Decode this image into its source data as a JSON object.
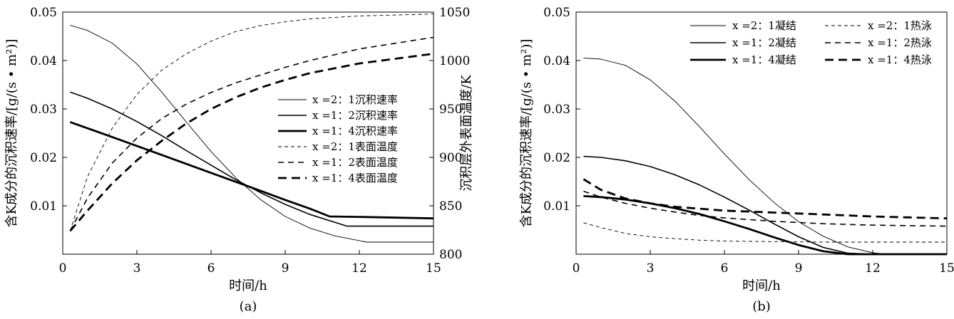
{
  "chart_data": [
    {
      "type": "line",
      "panel_label": "(a)",
      "xlabel": "时间/h",
      "ylabel": "含K成分的沉积速率/[g/(s • m²)]",
      "y2label": "沉积层外表面温度/K",
      "xlim": [
        0,
        15
      ],
      "ylim": [
        0,
        0.05
      ],
      "y2lim": [
        800,
        1050
      ],
      "x_ticks": [
        "0",
        "3",
        "6",
        "9",
        "12",
        "15"
      ],
      "y_ticks": [
        "0.01",
        "0.02",
        "0.03",
        "0.04",
        "0.05"
      ],
      "y2_ticks": [
        "800",
        "850",
        "900",
        "950",
        "1000",
        "1050"
      ],
      "grid": false,
      "legend_position": "center-right",
      "series": [
        {
          "name": "x =2：1沉积速率",
          "axis": "left",
          "style": "solid-thin",
          "x": [
            0.3,
            1,
            2,
            3,
            4,
            5,
            6,
            7,
            8,
            9,
            10,
            11,
            12.3,
            13,
            15
          ],
          "y": [
            0.0473,
            0.0462,
            0.0436,
            0.0393,
            0.0335,
            0.0273,
            0.0212,
            0.0158,
            0.0113,
            0.0078,
            0.0054,
            0.0038,
            0.0025,
            0.0025,
            0.0025
          ]
        },
        {
          "name": "x =1：2沉积速率",
          "axis": "left",
          "style": "solid-medium",
          "x": [
            0.3,
            1,
            2,
            3,
            4,
            5,
            6,
            7,
            8,
            9,
            10,
            11.5,
            13,
            15
          ],
          "y": [
            0.0335,
            0.0322,
            0.03,
            0.0274,
            0.0245,
            0.0214,
            0.0184,
            0.0154,
            0.0127,
            0.0103,
            0.0082,
            0.0058,
            0.0058,
            0.0058
          ]
        },
        {
          "name": "x =1：4沉积速率",
          "axis": "left",
          "style": "solid-thick",
          "x": [
            0.3,
            2,
            4,
            6,
            8,
            9,
            10,
            10.8,
            12,
            15
          ],
          "y": [
            0.0273,
            0.0242,
            0.0205,
            0.0168,
            0.0131,
            0.0112,
            0.0094,
            0.0078,
            0.0077,
            0.0074
          ]
        },
        {
          "name": "x =2：1表面温度",
          "axis": "right",
          "style": "dash-thin",
          "x": [
            0.3,
            1,
            2,
            3,
            4,
            5,
            6,
            7,
            8,
            9,
            10,
            12,
            15
          ],
          "y": [
            824,
            880,
            930,
            965,
            990,
            1007,
            1020,
            1030,
            1036,
            1040,
            1043,
            1046,
            1048
          ]
        },
        {
          "name": "x =1：2表面温度",
          "axis": "right",
          "style": "dash-medium",
          "x": [
            0.3,
            1,
            2,
            3,
            4,
            5,
            6,
            7,
            8,
            9,
            10,
            12,
            15
          ],
          "y": [
            824,
            858,
            894,
            920,
            940,
            955,
            967,
            977,
            985,
            993,
            1000,
            1012,
            1024
          ]
        },
        {
          "name": "x =1：4表面温度",
          "axis": "right",
          "style": "dash-thick",
          "x": [
            0.3,
            1,
            2,
            3,
            4,
            5,
            6,
            7,
            8,
            9,
            10,
            12,
            15
          ],
          "y": [
            824,
            845,
            873,
            897,
            917,
            935,
            950,
            962,
            972,
            980,
            987,
            997,
            1007
          ]
        }
      ]
    },
    {
      "type": "line",
      "panel_label": "(b)",
      "xlabel": "时间/h",
      "ylabel": "含K成分的沉积速率/[g/(s • m²)]",
      "xlim": [
        0,
        15
      ],
      "ylim": [
        0,
        0.05
      ],
      "x_ticks": [
        "0",
        "3",
        "6",
        "9",
        "12",
        "15"
      ],
      "y_ticks": [
        "0.01",
        "0.02",
        "0.03",
        "0.04",
        "0.05"
      ],
      "grid": false,
      "legend_position": "top",
      "series": [
        {
          "name": "x =2：1凝结",
          "style": "solid-thin",
          "x": [
            0.3,
            1,
            2,
            3,
            4,
            5,
            6,
            7,
            8,
            9,
            10,
            11,
            12,
            12.5,
            15
          ],
          "y": [
            0.0405,
            0.0403,
            0.039,
            0.036,
            0.0316,
            0.0263,
            0.0207,
            0.0154,
            0.0107,
            0.0067,
            0.0037,
            0.0015,
            0.0003,
            0.0,
            0.0
          ]
        },
        {
          "name": "x =1：2凝结",
          "style": "solid-medium",
          "x": [
            0.3,
            1,
            2,
            3,
            4,
            5,
            6,
            7,
            8,
            9,
            10,
            11,
            12,
            15
          ],
          "y": [
            0.0202,
            0.02,
            0.0193,
            0.0181,
            0.0164,
            0.0143,
            0.0118,
            0.0091,
            0.0063,
            0.0036,
            0.0014,
            0.0002,
            0.0,
            0.0
          ]
        },
        {
          "name": "x =1：4凝结",
          "style": "solid-thick",
          "x": [
            0.3,
            1,
            2,
            3,
            4,
            5,
            6,
            7,
            8,
            9,
            10,
            11,
            15
          ],
          "y": [
            0.012,
            0.0118,
            0.0113,
            0.0105,
            0.0095,
            0.0083,
            0.0068,
            0.0052,
            0.0035,
            0.0019,
            0.0006,
            0.0,
            0.0
          ]
        },
        {
          "name": "x =2：1热泳",
          "style": "dash-thin",
          "x": [
            0.3,
            1,
            2,
            3,
            4,
            5,
            6,
            8,
            10,
            12,
            15
          ],
          "y": [
            0.0065,
            0.0055,
            0.0043,
            0.0036,
            0.0032,
            0.0029,
            0.0027,
            0.0026,
            0.0025,
            0.0025,
            0.0025
          ]
        },
        {
          "name": "x =1：2热泳",
          "style": "dash-medium",
          "x": [
            0.3,
            1,
            2,
            3,
            4,
            5,
            6,
            8,
            10,
            12,
            15
          ],
          "y": [
            0.013,
            0.0118,
            0.0105,
            0.0095,
            0.0087,
            0.008,
            0.0075,
            0.0068,
            0.0063,
            0.006,
            0.0058
          ]
        },
        {
          "name": "x =1：4热泳",
          "style": "dash-thick",
          "x": [
            0.3,
            1,
            2,
            3,
            4,
            5,
            6,
            8,
            10,
            12,
            15
          ],
          "y": [
            0.0155,
            0.0133,
            0.0115,
            0.0105,
            0.0098,
            0.0094,
            0.009,
            0.0086,
            0.0082,
            0.0078,
            0.0074
          ]
        }
      ]
    }
  ]
}
